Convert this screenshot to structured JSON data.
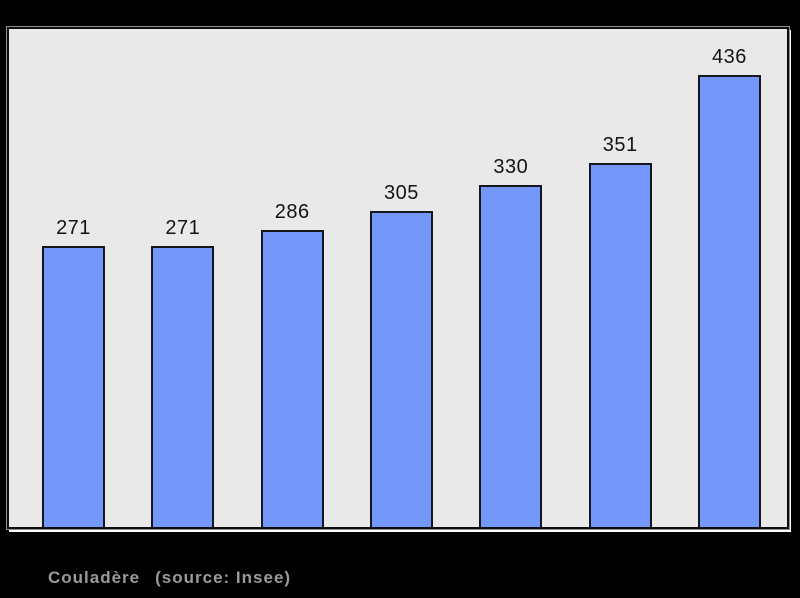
{
  "page": {
    "background_color": "#000000"
  },
  "chart_data": {
    "type": "bar",
    "values": [
      271,
      271,
      286,
      305,
      330,
      351,
      436
    ],
    "bar_labels": [
      "271",
      "271",
      "286",
      "305",
      "330",
      "351",
      "436"
    ],
    "title": "",
    "xlabel": "",
    "ylabel": "",
    "ylim": [
      0,
      480
    ],
    "grid": false,
    "legend": false,
    "bar_color": "#7397fb",
    "bar_border_color": "#14171c",
    "panel_background": "#e9e9e9",
    "panel_border_color": "#0d0d0d",
    "value_label_color": "#141414"
  },
  "caption": {
    "commune": "Couladère",
    "source": "(source: Insee)",
    "color": "#9a9a9a"
  }
}
